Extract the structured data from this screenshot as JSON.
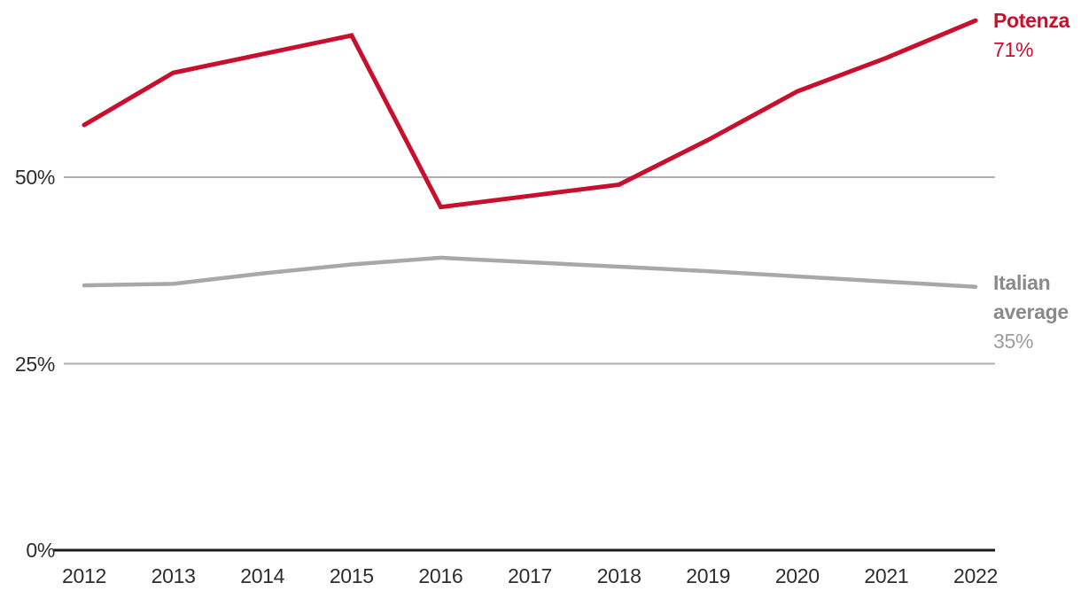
{
  "chart_data": {
    "type": "line",
    "categories": [
      "2012",
      "2013",
      "2014",
      "2015",
      "2016",
      "2017",
      "2018",
      "2019",
      "2020",
      "2021",
      "2022"
    ],
    "series": [
      {
        "name": "Potenza",
        "end_label": "71%",
        "values": [
          57,
          64,
          66.5,
          69,
          46,
          47.5,
          49,
          55,
          61.5,
          66,
          71
        ],
        "line_color": "#c8102e",
        "label_color": "#c8102e",
        "value_color": "#c8102e",
        "stroke_width": 5
      },
      {
        "name": "Italian average",
        "end_label": "35%",
        "values": [
          35.5,
          35.7,
          37.1,
          38.3,
          39.2,
          38.6,
          38.0,
          37.4,
          36.7,
          36.0,
          35.3
        ],
        "line_color": "#a8a8a6",
        "label_color": "#8a8a88",
        "value_color": "#9c9c9a",
        "stroke_width": 4.5
      }
    ],
    "yticks": [
      {
        "value": 0,
        "label": "0%"
      },
      {
        "value": 25,
        "label": "25%"
      },
      {
        "value": 50,
        "label": "50%"
      }
    ],
    "ylim": [
      0,
      74
    ],
    "xlabel": "",
    "ylabel": "",
    "title": "",
    "grid": "horizontal gridlines at 25% and 50%, solid baseline axis at 0%",
    "gridline_color": "#aeaeac",
    "axis_line_color": "#1a1a1a",
    "legend_position": "right of line endpoints"
  }
}
